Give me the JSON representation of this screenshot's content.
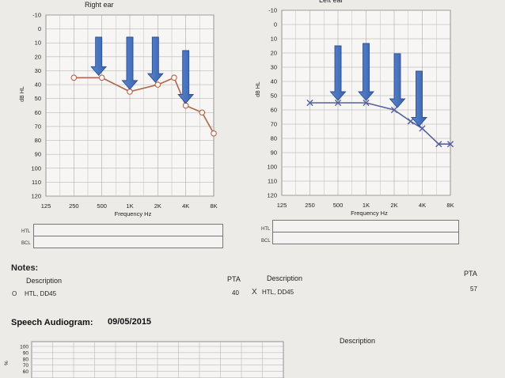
{
  "chart_data": [
    {
      "type": "line",
      "title": "Right ear",
      "xlabel": "Frequency Hz",
      "ylabel": "dB HL",
      "x_ticks": [
        "125",
        "250",
        "500",
        "1K",
        "2K",
        "4K",
        "8K"
      ],
      "y_ticks": [
        "-10",
        "0",
        "10",
        "20",
        "30",
        "40",
        "50",
        "60",
        "70",
        "80",
        "90",
        "100",
        "110",
        "120"
      ],
      "ylim": [
        -10,
        120
      ],
      "y_inverted": true,
      "grid": true,
      "series": [
        {
          "marker": "circle",
          "color": "#b0664a",
          "points": [
            {
              "f": 250,
              "db": 35
            },
            {
              "f": 500,
              "db": 35
            },
            {
              "f": 1000,
              "db": 45
            },
            {
              "f": 2000,
              "db": 40
            },
            {
              "f": 3000,
              "db": 35
            },
            {
              "f": 4000,
              "db": 55
            },
            {
              "f": 6000,
              "db": 60
            },
            {
              "f": 8000,
              "db": 75
            }
          ]
        }
      ],
      "arrows_at_hz": [
        500,
        1000,
        2000,
        4000
      ],
      "arrow_color": "#3e68b3"
    },
    {
      "type": "line",
      "title": "Left  ear",
      "xlabel": "Frequency Hz",
      "ylabel": "dB HL",
      "x_ticks": [
        "125",
        "250",
        "500",
        "1K",
        "2K",
        "4K",
        "8K"
      ],
      "y_ticks": [
        "-10",
        "0",
        "10",
        "20",
        "30",
        "40",
        "50",
        "60",
        "70",
        "80",
        "90",
        "100",
        "110",
        "120"
      ],
      "ylim": [
        -10,
        120
      ],
      "y_inverted": true,
      "grid": true,
      "series": [
        {
          "marker": "x",
          "color": "#54609f",
          "points": [
            {
              "f": 250,
              "db": 55
            },
            {
              "f": 500,
              "db": 55
            },
            {
              "f": 1000,
              "db": 55
            },
            {
              "f": 2000,
              "db": 60
            },
            {
              "f": 3000,
              "db": 68
            },
            {
              "f": 4000,
              "db": 73
            },
            {
              "f": 6000,
              "db": 84
            },
            {
              "f": 8000,
              "db": 84
            }
          ]
        }
      ],
      "arrows_at_hz": [
        500,
        1000,
        2000,
        4000
      ],
      "arrow_color": "#3e68b3"
    },
    {
      "type": "line",
      "title": "Speech Audiogram:",
      "date": "09/05/2015",
      "ylabel": "%",
      "y_ticks": [
        "100",
        "90",
        "80",
        "70",
        "60"
      ],
      "series": [],
      "grid": true
    }
  ],
  "htl_boxes": {
    "htl_label": "HTL",
    "bcl_label": "BCL"
  },
  "notes": {
    "title": "Notes:",
    "description_header": "Description",
    "pta_header": "PTA",
    "right": {
      "symbol": "O",
      "description": "HTL, DD45",
      "pta": "40"
    },
    "left": {
      "symbol": "X",
      "description": "HTL, DD45",
      "pta": "57"
    }
  },
  "speech": {
    "title": "Speech Audiogram:",
    "date": "09/05/2015",
    "description_header": "Description"
  }
}
